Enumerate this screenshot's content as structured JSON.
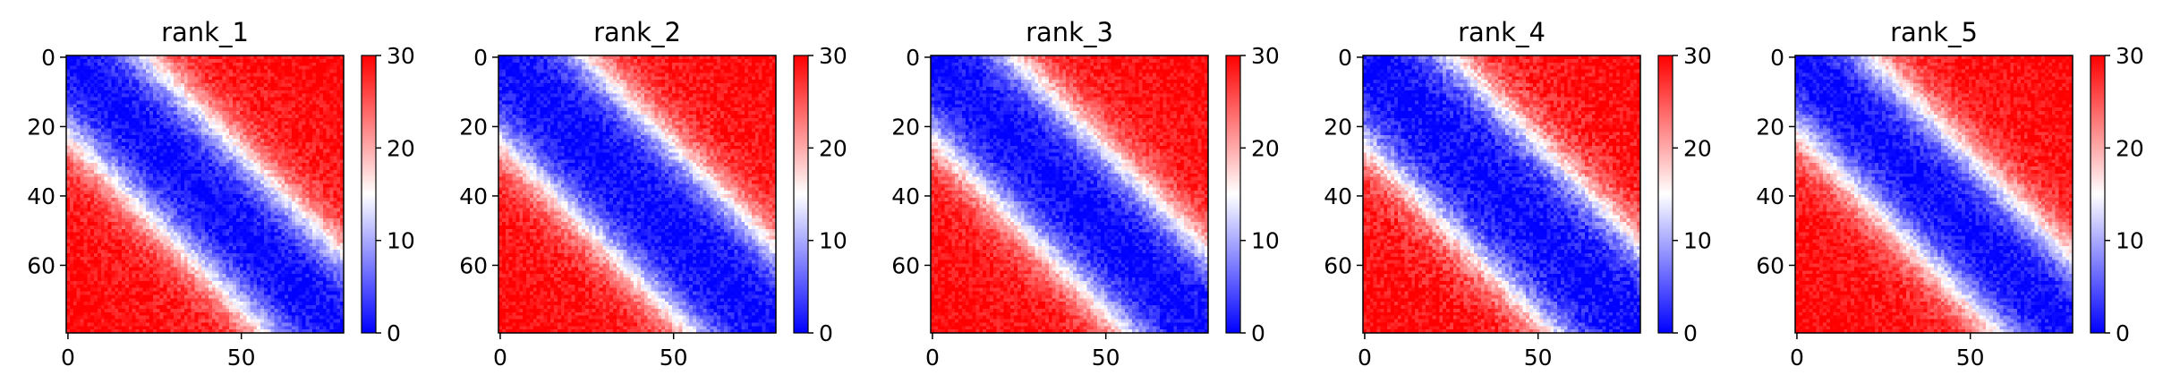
{
  "chart_data": [
    {
      "type": "heatmap",
      "title": "rank_1",
      "matrix_size": 80,
      "value_model": "distance_from_diagonal",
      "diag_value": 0,
      "far_value": 30,
      "blue_band_halfwidth": 22,
      "noise_amplitude": 2.5,
      "seed": 11,
      "xlim": [
        0,
        79
      ],
      "ylim": [
        0,
        79
      ],
      "x_ticks": [
        0,
        50
      ],
      "y_ticks": [
        0,
        20,
        40,
        60
      ],
      "colorbar": {
        "min": 0,
        "max": 30,
        "ticks": [
          0,
          10,
          20,
          30
        ],
        "colormap": "bwr"
      },
      "grid": false
    },
    {
      "type": "heatmap",
      "title": "rank_2",
      "matrix_size": 80,
      "value_model": "distance_from_diagonal",
      "diag_value": 0,
      "far_value": 30,
      "blue_band_halfwidth": 24,
      "noise_amplitude": 2.5,
      "seed": 23,
      "xlim": [
        0,
        79
      ],
      "ylim": [
        0,
        79
      ],
      "x_ticks": [
        0,
        50
      ],
      "y_ticks": [
        0,
        20,
        40,
        60
      ],
      "colorbar": {
        "min": 0,
        "max": 30,
        "ticks": [
          0,
          10,
          20,
          30
        ],
        "colormap": "bwr"
      },
      "grid": false
    },
    {
      "type": "heatmap",
      "title": "rank_3",
      "matrix_size": 80,
      "value_model": "distance_from_diagonal",
      "diag_value": 0,
      "far_value": 30,
      "blue_band_halfwidth": 23,
      "noise_amplitude": 2.5,
      "seed": 37,
      "xlim": [
        0,
        79
      ],
      "ylim": [
        0,
        79
      ],
      "x_ticks": [
        0,
        50
      ],
      "y_ticks": [
        0,
        20,
        40,
        60
      ],
      "colorbar": {
        "min": 0,
        "max": 30,
        "ticks": [
          0,
          10,
          20,
          30
        ],
        "colormap": "bwr"
      },
      "grid": false
    },
    {
      "type": "heatmap",
      "title": "rank_4",
      "matrix_size": 80,
      "value_model": "distance_from_diagonal",
      "diag_value": 0,
      "far_value": 30,
      "blue_band_halfwidth": 25,
      "noise_amplitude": 3,
      "seed": 41,
      "xlim": [
        0,
        79
      ],
      "ylim": [
        0,
        79
      ],
      "x_ticks": [
        0,
        50
      ],
      "y_ticks": [
        0,
        20,
        40,
        60
      ],
      "colorbar": {
        "min": 0,
        "max": 30,
        "ticks": [
          0,
          10,
          20,
          30
        ],
        "colormap": "bwr"
      },
      "grid": false
    },
    {
      "type": "heatmap",
      "title": "rank_5",
      "matrix_size": 80,
      "value_model": "distance_from_diagonal",
      "diag_value": 0,
      "far_value": 30,
      "blue_band_halfwidth": 21,
      "noise_amplitude": 2.5,
      "seed": 53,
      "xlim": [
        0,
        79
      ],
      "ylim": [
        0,
        79
      ],
      "x_ticks": [
        0,
        50
      ],
      "y_ticks": [
        0,
        20,
        40,
        60
      ],
      "colorbar": {
        "min": 0,
        "max": 30,
        "ticks": [
          0,
          10,
          20,
          30
        ],
        "colormap": "bwr"
      },
      "grid": false
    }
  ],
  "colors": {
    "low": "#0000ff",
    "mid": "#ffffff",
    "high": "#ff0000",
    "axis": "#000000"
  }
}
